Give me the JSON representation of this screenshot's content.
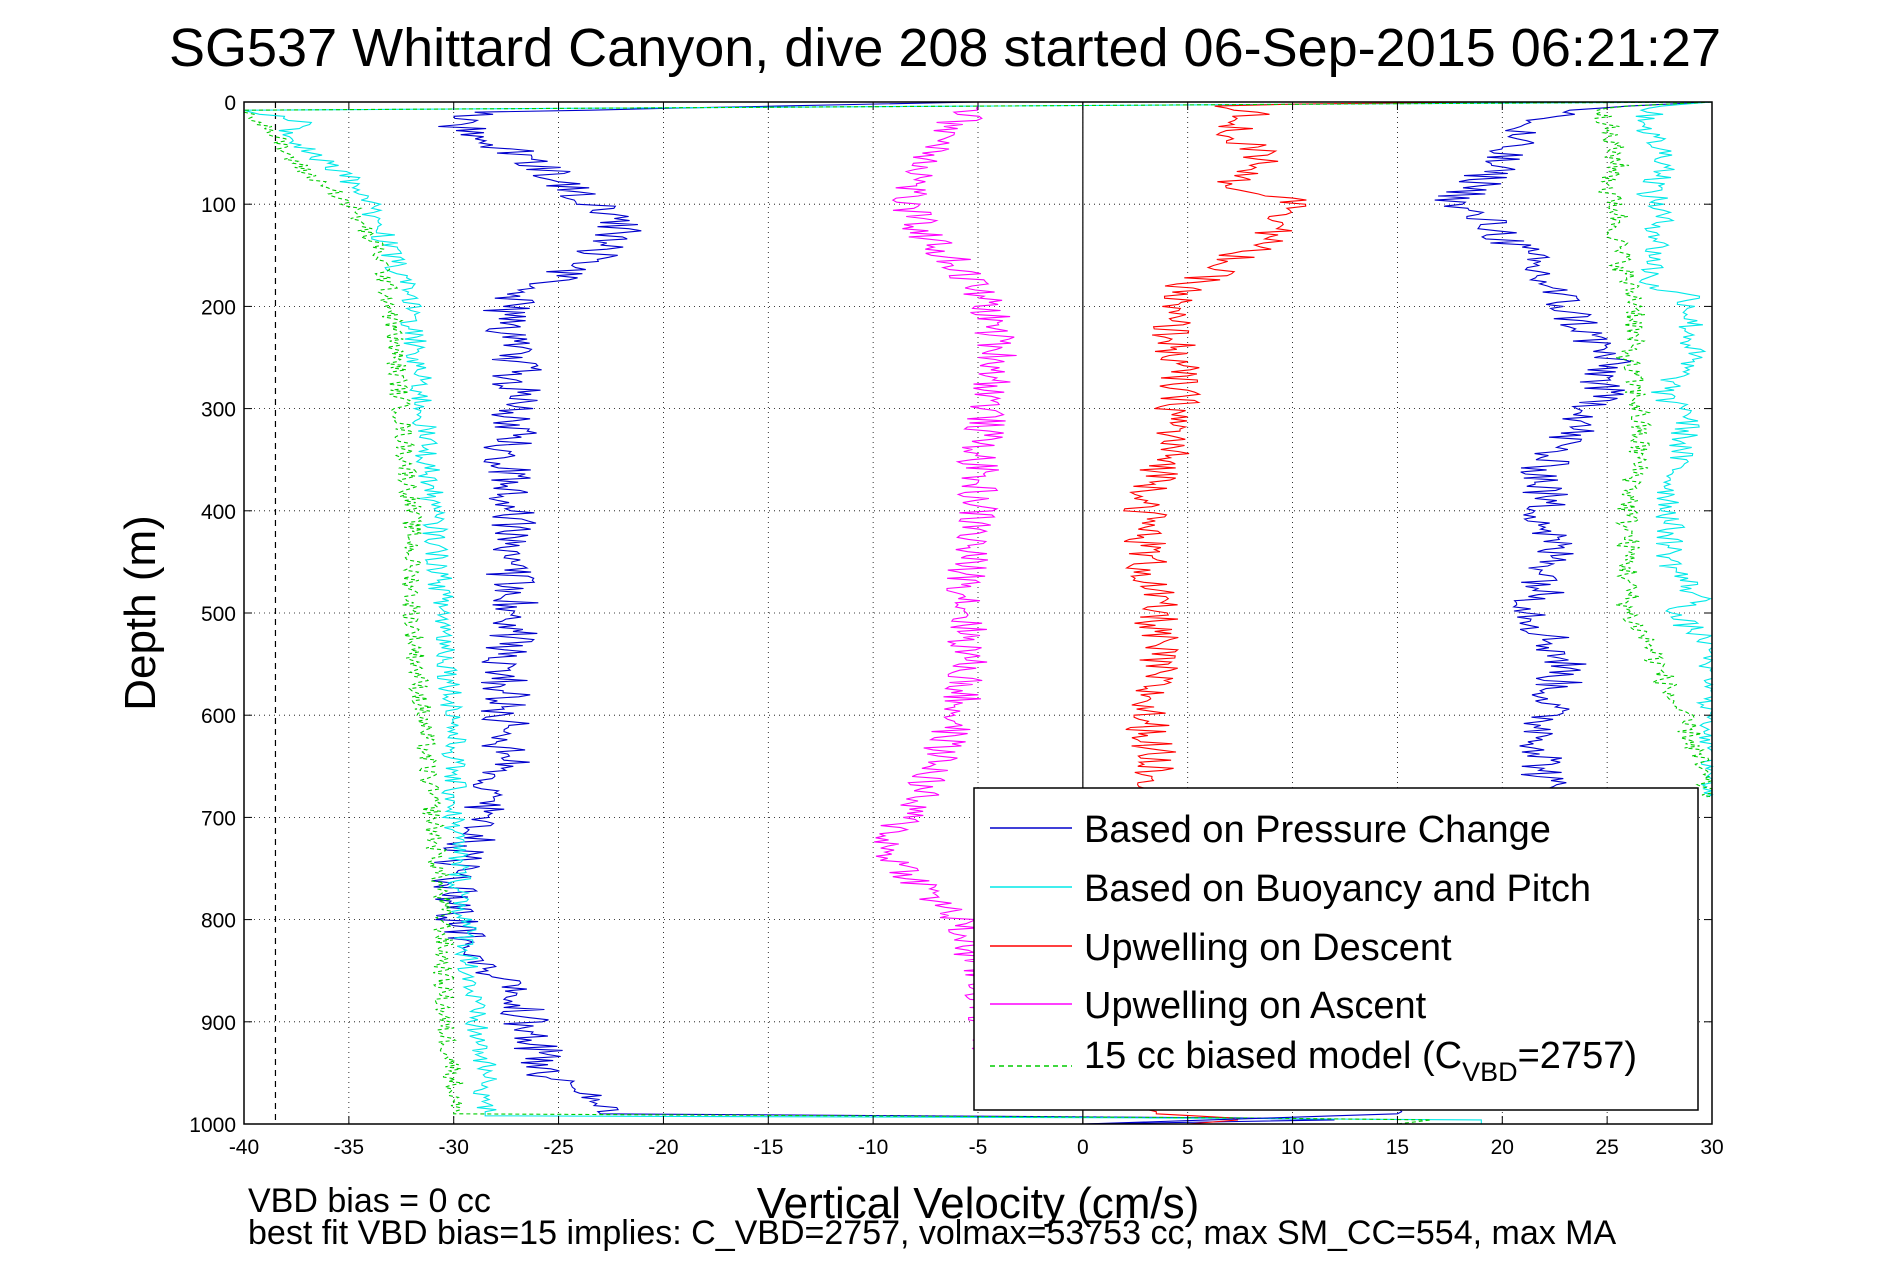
{
  "chart_data": {
    "type": "line",
    "title": "SG537 Whittard Canyon, dive 208 started 06-Sep-2015 06:21:27",
    "xlabel": "Vertical Velocity (cm/s)",
    "ylabel": "Depth (m)",
    "xlim": [
      -40,
      30
    ],
    "ylim": [
      0,
      1000
    ],
    "y_reversed": true,
    "grid": true,
    "x_ticks": [
      "-40",
      "-35",
      "-30",
      "-25",
      "-20",
      "-15",
      "-10",
      "-5",
      "0",
      "5",
      "10",
      "15",
      "20",
      "25",
      "30"
    ],
    "y_ticks": [
      "0",
      "100",
      "200",
      "300",
      "400",
      "500",
      "600",
      "700",
      "800",
      "900",
      "1000"
    ],
    "vertical_lines": [
      {
        "x": 0,
        "style": "solid",
        "color": "#000000"
      },
      {
        "x": -38.5,
        "style": "dashed",
        "color": "#000000"
      }
    ],
    "legend_position": "bottom-right",
    "legend": {
      "pressure": "Based on Pressure Change",
      "buoyancy": "Based on Buoyancy and Pitch",
      "descent": "Upwelling on Descent",
      "ascent": "Upwelling on Ascent",
      "model_prefix": "15 cc biased model (C",
      "model_sub": "VBD",
      "model_suffix": "=2757)"
    },
    "series": [
      {
        "name": "Based on Pressure Change",
        "color": "#0000cc",
        "style": "solid",
        "depth": [
          0,
          10,
          20,
          40,
          60,
          80,
          100,
          120,
          140,
          160,
          180,
          200,
          250,
          300,
          350,
          400,
          450,
          500,
          550,
          600,
          650,
          700,
          750,
          800,
          850,
          900,
          950,
          990,
          995,
          1000
        ],
        "x": [
          -5,
          -29,
          -30,
          -28,
          -26,
          -25,
          -23,
          -22,
          -22.5,
          -24,
          -26,
          -27.5,
          -27,
          -27,
          -27.5,
          -27,
          -27.5,
          -27,
          -27.5,
          -27.5,
          -27.5,
          -28.5,
          -30,
          -30,
          -28,
          -26.5,
          -25.5,
          -23,
          15,
          0
        ],
        "noise": 1.2
      },
      {
        "name": "Based on Buoyancy and Pitch",
        "color": "#00e8e8",
        "style": "solid",
        "depth": [
          0,
          8,
          20,
          30,
          45,
          60,
          75,
          100,
          150,
          200,
          300,
          400,
          500,
          600,
          700,
          800,
          900,
          950,
          992,
          995,
          1000
        ],
        "x": [
          30,
          -40,
          -37,
          -38,
          -37,
          -36,
          -35,
          -34,
          -33,
          -32,
          -31.5,
          -31,
          -30.5,
          -30,
          -30,
          -29.5,
          -29,
          -28.5,
          -28.5,
          19,
          19
        ],
        "noise": 0.6
      },
      {
        "name": "Upwelling on Descent",
        "color": "#ff0000",
        "style": "solid",
        "depth": [
          0,
          3,
          10,
          30,
          60,
          80,
          100,
          130,
          150,
          180,
          200,
          250,
          300,
          350,
          400,
          450,
          500,
          550,
          600,
          650,
          680,
          990,
          995,
          1000
        ],
        "x": [
          19,
          6,
          8,
          7,
          9,
          7,
          10.5,
          9,
          7.5,
          5,
          4,
          4.5,
          4.5,
          4,
          3,
          3,
          3.5,
          3.5,
          3,
          3.5,
          3.5,
          3.5,
          8,
          5
        ],
        "noise": 1.1
      },
      {
        "name": "Upwelling on Ascent",
        "color": "#ff00ff",
        "style": "solid",
        "depth": [
          0,
          5,
          20,
          50,
          80,
          100,
          130,
          160,
          200,
          250,
          300,
          350,
          400,
          450,
          500,
          550,
          600,
          650,
          700,
          730,
          760,
          800,
          850,
          900,
          930
        ],
        "x": [
          -5,
          -5,
          -6,
          -7,
          -8,
          -8.5,
          -7.5,
          -6,
          -4.5,
          -4,
          -4.5,
          -5,
          -5,
          -5.5,
          -5.5,
          -5.5,
          -6,
          -7,
          -8.5,
          -9.5,
          -8,
          -6,
          -5,
          -4.5,
          -4.5
        ],
        "noise": 1.0
      },
      {
        "name": "15 cc biased model (CVBD=2757)",
        "color": "#00cc00",
        "style": "dashed",
        "depth": [
          0,
          8,
          20,
          35,
          50,
          70,
          90,
          100,
          150,
          200,
          300,
          400,
          500,
          600,
          700,
          800,
          900,
          950,
          990,
          995,
          1000
        ],
        "x": [
          30,
          -40,
          -39,
          -38.5,
          -38,
          -37,
          -35.5,
          -35,
          -33.5,
          -33,
          -32.5,
          -32,
          -32,
          -31.5,
          -31,
          -30.5,
          -30.5,
          -30,
          -30,
          17,
          15
        ],
        "noise": 0.5
      },
      {
        "name": "Based on Pressure Change (ascent)",
        "color": "#0000cc",
        "style": "solid",
        "depth": [
          0,
          5,
          20,
          50,
          80,
          100,
          120,
          150,
          200,
          250,
          300,
          350,
          400,
          450,
          500,
          550,
          600,
          650,
          700,
          800,
          900,
          950,
          990,
          1000
        ],
        "x": [
          30,
          25,
          21,
          20,
          19,
          17.5,
          19.5,
          21,
          23,
          25,
          24.5,
          22,
          22,
          22.5,
          21.5,
          23,
          22,
          22,
          22,
          22,
          21,
          19,
          15,
          0
        ],
        "noise": 1.2
      },
      {
        "name": "Based on Buoyancy and Pitch (ascent)",
        "color": "#00e8e8",
        "style": "solid",
        "depth": [
          0,
          5,
          30,
          60,
          90,
          100,
          130,
          180,
          190,
          250,
          290,
          300,
          380,
          450,
          490,
          500,
          530,
          600,
          630,
          660,
          680
        ],
        "x": [
          30,
          27,
          27,
          28,
          27,
          27.5,
          27.5,
          27,
          29,
          29,
          27.5,
          29,
          28,
          28,
          29.5,
          28,
          30,
          30,
          30,
          30,
          30
        ],
        "noise": 0.7
      },
      {
        "name": "15 cc biased model (ascent)",
        "color": "#00cc00",
        "style": "dashed",
        "depth": [
          0,
          5,
          30,
          60,
          90,
          100,
          140,
          180,
          200,
          250,
          300,
          350,
          400,
          450,
          500,
          530,
          580,
          620,
          660,
          680
        ],
        "x": [
          30,
          25,
          25,
          25.5,
          25,
          25.5,
          25.5,
          26,
          26.5,
          26,
          26.5,
          26.5,
          26,
          26,
          26,
          27,
          28,
          29,
          29.5,
          30
        ],
        "noise": 0.6
      }
    ],
    "footer_lines": [
      "VBD bias = 0 cc",
      "best fit VBD bias=15 implies: C_VBD=2757, volmax=53753 cc, max SM_CC=554, max MA"
    ]
  }
}
